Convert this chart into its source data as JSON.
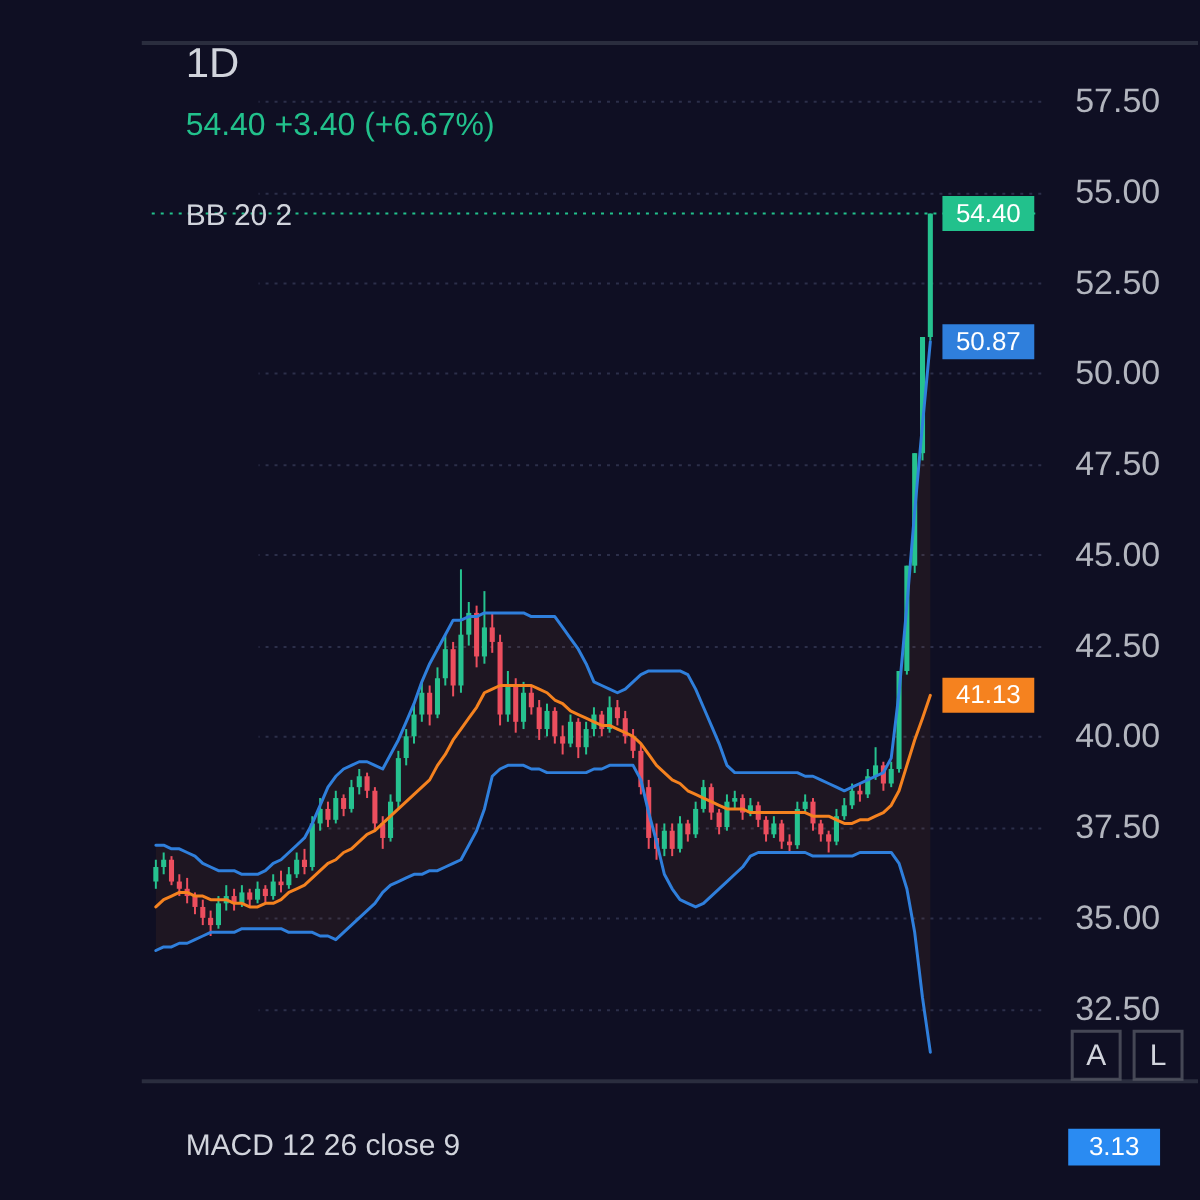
{
  "chart_data": {
    "type": "candlestick",
    "title": "1D",
    "subtitle": "54.40 +3.40 (+6.67%)",
    "categories": [
      null,
      null,
      null,
      null,
      null,
      null,
      null,
      null,
      null,
      null,
      null,
      null,
      null,
      null,
      null,
      null,
      null,
      null,
      null,
      null,
      null,
      null,
      null,
      null,
      null,
      null,
      null,
      null,
      null,
      null,
      null,
      null,
      null,
      null,
      null,
      null,
      null,
      null,
      null,
      null,
      null,
      null,
      null,
      null,
      null,
      null,
      null,
      null,
      null,
      null,
      null,
      null,
      null,
      null,
      null,
      null,
      null,
      null,
      null,
      null,
      null,
      null,
      null,
      null,
      null,
      null,
      null,
      null,
      null,
      null,
      null,
      null,
      null,
      null,
      null,
      null,
      null,
      null,
      null,
      null,
      null,
      null,
      null,
      null,
      null,
      null,
      null,
      null,
      null,
      null,
      null,
      null,
      null,
      null,
      null,
      null,
      null,
      null,
      null,
      null
    ],
    "ohlc": [
      [
        36.0,
        36.6,
        35.8,
        36.4
      ],
      [
        36.4,
        36.8,
        36.2,
        36.6
      ],
      [
        36.6,
        36.7,
        35.9,
        36.0
      ],
      [
        36.0,
        36.2,
        35.6,
        35.8
      ],
      [
        35.8,
        36.1,
        35.4,
        35.6
      ],
      [
        35.6,
        35.7,
        35.1,
        35.3
      ],
      [
        35.3,
        35.5,
        34.8,
        35.0
      ],
      [
        35.0,
        35.2,
        34.5,
        34.8
      ],
      [
        34.8,
        35.6,
        34.7,
        35.4
      ],
      [
        35.4,
        35.9,
        35.2,
        35.6
      ],
      [
        35.6,
        35.8,
        35.2,
        35.4
      ],
      [
        35.4,
        35.9,
        35.3,
        35.7
      ],
      [
        35.7,
        35.8,
        35.3,
        35.5
      ],
      [
        35.5,
        36.0,
        35.4,
        35.8
      ],
      [
        35.8,
        35.9,
        35.4,
        35.6
      ],
      [
        35.6,
        36.2,
        35.5,
        36.0
      ],
      [
        36.0,
        36.3,
        35.7,
        35.9
      ],
      [
        35.9,
        36.4,
        35.8,
        36.2
      ],
      [
        36.2,
        36.8,
        36.1,
        36.6
      ],
      [
        36.6,
        36.9,
        36.2,
        36.4
      ],
      [
        36.4,
        37.8,
        36.3,
        37.6
      ],
      [
        37.6,
        38.3,
        37.4,
        38.0
      ],
      [
        38.0,
        38.2,
        37.5,
        37.7
      ],
      [
        37.7,
        38.5,
        37.6,
        38.3
      ],
      [
        38.3,
        38.4,
        37.8,
        38.0
      ],
      [
        38.0,
        38.8,
        37.9,
        38.6
      ],
      [
        38.6,
        39.1,
        38.4,
        38.9
      ],
      [
        38.9,
        39.0,
        38.3,
        38.5
      ],
      [
        38.5,
        38.6,
        37.4,
        37.6
      ],
      [
        37.6,
        37.8,
        36.9,
        37.2
      ],
      [
        37.2,
        38.4,
        37.1,
        38.2
      ],
      [
        38.2,
        39.6,
        38.0,
        39.4
      ],
      [
        39.4,
        40.2,
        39.2,
        40.0
      ],
      [
        40.0,
        40.9,
        39.8,
        40.6
      ],
      [
        40.6,
        41.5,
        40.4,
        41.2
      ],
      [
        41.2,
        41.4,
        40.3,
        40.6
      ],
      [
        40.6,
        41.9,
        40.5,
        41.6
      ],
      [
        41.6,
        42.8,
        41.4,
        42.4
      ],
      [
        42.4,
        42.6,
        41.1,
        41.4
      ],
      [
        41.4,
        44.6,
        41.2,
        42.8
      ],
      [
        42.8,
        43.7,
        42.5,
        43.4
      ],
      [
        43.4,
        43.6,
        41.9,
        42.2
      ],
      [
        42.2,
        44.0,
        42.0,
        43.0
      ],
      [
        43.0,
        43.4,
        42.3,
        42.6
      ],
      [
        42.6,
        42.8,
        40.3,
        40.6
      ],
      [
        40.6,
        41.8,
        40.4,
        41.4
      ],
      [
        41.4,
        41.6,
        40.1,
        40.4
      ],
      [
        40.4,
        41.5,
        40.2,
        41.2
      ],
      [
        41.2,
        41.4,
        40.6,
        40.8
      ],
      [
        40.8,
        41.0,
        39.9,
        40.2
      ],
      [
        40.2,
        40.9,
        40.0,
        40.7
      ],
      [
        40.7,
        40.8,
        39.8,
        40.0
      ],
      [
        40.0,
        40.3,
        39.5,
        39.8
      ],
      [
        39.8,
        40.6,
        39.7,
        40.4
      ],
      [
        40.4,
        40.5,
        39.4,
        39.7
      ],
      [
        39.7,
        40.4,
        39.5,
        40.2
      ],
      [
        40.2,
        40.8,
        40.0,
        40.6
      ],
      [
        40.6,
        40.7,
        40.0,
        40.2
      ],
      [
        40.2,
        41.1,
        40.1,
        40.8
      ],
      [
        40.8,
        41.0,
        40.3,
        40.5
      ],
      [
        40.5,
        40.7,
        39.8,
        40.0
      ],
      [
        40.0,
        40.2,
        39.4,
        39.6
      ],
      [
        39.6,
        39.8,
        38.4,
        38.6
      ],
      [
        38.6,
        38.8,
        36.9,
        37.2
      ],
      [
        37.2,
        37.6,
        36.6,
        36.9
      ],
      [
        36.9,
        37.6,
        36.7,
        37.4
      ],
      [
        37.4,
        37.6,
        36.7,
        36.9
      ],
      [
        36.9,
        37.8,
        36.8,
        37.6
      ],
      [
        37.6,
        37.7,
        37.1,
        37.3
      ],
      [
        37.3,
        38.2,
        37.2,
        38.0
      ],
      [
        38.0,
        38.8,
        37.9,
        38.6
      ],
      [
        38.6,
        38.7,
        37.7,
        37.9
      ],
      [
        37.9,
        38.0,
        37.3,
        37.5
      ],
      [
        37.5,
        38.4,
        37.4,
        38.2
      ],
      [
        38.2,
        38.5,
        38.0,
        38.3
      ],
      [
        38.3,
        38.4,
        37.7,
        37.9
      ],
      [
        37.9,
        38.3,
        37.8,
        38.1
      ],
      [
        38.1,
        38.2,
        37.5,
        37.7
      ],
      [
        37.7,
        37.8,
        37.1,
        37.3
      ],
      [
        37.3,
        37.8,
        37.2,
        37.6
      ],
      [
        37.6,
        37.7,
        36.9,
        37.1
      ],
      [
        37.1,
        37.3,
        36.8,
        37.0
      ],
      [
        37.0,
        38.2,
        36.9,
        38.0
      ],
      [
        38.0,
        38.4,
        37.9,
        38.2
      ],
      [
        38.2,
        38.3,
        37.4,
        37.6
      ],
      [
        37.6,
        37.7,
        37.1,
        37.3
      ],
      [
        37.3,
        37.4,
        36.8,
        37.1
      ],
      [
        37.1,
        38.0,
        37.0,
        37.8
      ],
      [
        37.8,
        38.3,
        37.7,
        38.1
      ],
      [
        38.1,
        38.7,
        38.0,
        38.5
      ],
      [
        38.5,
        38.7,
        38.2,
        38.4
      ],
      [
        38.4,
        39.1,
        38.3,
        38.9
      ],
      [
        38.9,
        39.7,
        38.8,
        39.2
      ],
      [
        39.2,
        39.3,
        38.5,
        38.7
      ],
      [
        38.7,
        39.3,
        38.6,
        39.1
      ],
      [
        39.1,
        41.8,
        39.0,
        41.8
      ],
      [
        41.8,
        44.7,
        41.7,
        44.7
      ],
      [
        44.7,
        47.8,
        44.5,
        47.8
      ],
      [
        47.8,
        51.0,
        47.6,
        51.0
      ],
      [
        51.0,
        54.4,
        50.9,
        54.4
      ]
    ],
    "colors": [
      "#26c28f",
      "#26c28f",
      "#ec4e5e",
      "#ec4e5e",
      "#ec4e5e",
      "#ec4e5e",
      "#ec4e5e",
      "#ec4e5e",
      "#26c28f",
      "#26c28f",
      "#ec4e5e",
      "#26c28f",
      "#ec4e5e",
      "#26c28f",
      "#ec4e5e",
      "#26c28f",
      "#ec4e5e",
      "#26c28f",
      "#26c28f",
      "#ec4e5e",
      "#26c28f",
      "#26c28f",
      "#ec4e5e",
      "#26c28f",
      "#ec4e5e",
      "#26c28f",
      "#26c28f",
      "#ec4e5e",
      "#ec4e5e",
      "#ec4e5e",
      "#26c28f",
      "#26c28f",
      "#26c28f",
      "#26c28f",
      "#26c28f",
      "#ec4e5e",
      "#26c28f",
      "#26c28f",
      "#ec4e5e",
      "#26c28f",
      "#26c28f",
      "#ec4e5e",
      "#26c28f",
      "#ec4e5e",
      "#ec4e5e",
      "#26c28f",
      "#ec4e5e",
      "#26c28f",
      "#ec4e5e",
      "#ec4e5e",
      "#26c28f",
      "#ec4e5e",
      "#ec4e5e",
      "#26c28f",
      "#ec4e5e",
      "#26c28f",
      "#26c28f",
      "#ec4e5e",
      "#26c28f",
      "#ec4e5e",
      "#ec4e5e",
      "#ec4e5e",
      "#ec4e5e",
      "#ec4e5e",
      "#ec4e5e",
      "#26c28f",
      "#ec4e5e",
      "#26c28f",
      "#ec4e5e",
      "#26c28f",
      "#26c28f",
      "#ec4e5e",
      "#ec4e5e",
      "#26c28f",
      "#26c28f",
      "#ec4e5e",
      "#26c28f",
      "#ec4e5e",
      "#ec4e5e",
      "#26c28f",
      "#ec4e5e",
      "#ec4e5e",
      "#26c28f",
      "#26c28f",
      "#ec4e5e",
      "#ec4e5e",
      "#ec4e5e",
      "#26c28f",
      "#26c28f",
      "#26c28f",
      "#ec4e5e",
      "#26c28f",
      "#26c28f",
      "#ec4e5e",
      "#26c28f",
      "#26c28f",
      "#26c28f",
      "#26c28f",
      "#26c28f",
      "#26c28f"
    ],
    "series": [
      {
        "type": "line",
        "color": "#f5821f",
        "line_style": "solid",
        "values": [
          35.3,
          35.5,
          35.6,
          35.7,
          35.7,
          35.6,
          35.6,
          35.5,
          35.5,
          35.5,
          35.4,
          35.4,
          35.3,
          35.3,
          35.4,
          35.4,
          35.5,
          35.7,
          35.8,
          35.9,
          36.1,
          36.3,
          36.5,
          36.6,
          36.8,
          36.9,
          37.1,
          37.3,
          37.4,
          37.6,
          37.8,
          38.0,
          38.2,
          38.4,
          38.6,
          38.8,
          39.2,
          39.5,
          39.9,
          40.2,
          40.5,
          40.8,
          41.2,
          41.3,
          41.4,
          41.4,
          41.4,
          41.4,
          41.4,
          41.3,
          41.2,
          41.0,
          40.9,
          40.7,
          40.6,
          40.5,
          40.4,
          40.3,
          40.3,
          40.2,
          40.1,
          40.0,
          39.8,
          39.5,
          39.2,
          39.0,
          38.8,
          38.7,
          38.5,
          38.4,
          38.3,
          38.2,
          38.1,
          38.0,
          38.0,
          38.0,
          37.9,
          37.9,
          37.9,
          37.9,
          37.9,
          37.9,
          37.9,
          37.9,
          37.8,
          37.8,
          37.8,
          37.7,
          37.6,
          37.6,
          37.7,
          37.7,
          37.8,
          37.9,
          38.1,
          38.5,
          39.2,
          39.9,
          40.5,
          41.13
        ],
        "lower": [
          34.1,
          34.2,
          34.2,
          34.3,
          34.3,
          34.4,
          34.5,
          34.6,
          34.6,
          34.6,
          34.6,
          34.7,
          34.7,
          34.7,
          34.7,
          34.7,
          34.7,
          34.6,
          34.6,
          34.6,
          34.6,
          34.5,
          34.5,
          34.4,
          34.6,
          34.8,
          35.0,
          35.2,
          35.4,
          35.7,
          35.9,
          36.0,
          36.1,
          36.2,
          36.2,
          36.3,
          36.3,
          36.4,
          36.5,
          36.6,
          37.0,
          37.4,
          38.0,
          38.9,
          39.1,
          39.2,
          39.2,
          39.2,
          39.1,
          39.1,
          39.0,
          39.0,
          39.0,
          39.0,
          39.0,
          39.0,
          39.1,
          39.1,
          39.2,
          39.2,
          39.2,
          39.2,
          38.8,
          37.9,
          37.1,
          36.2,
          35.8,
          35.5,
          35.4,
          35.3,
          35.4,
          35.6,
          35.8,
          36.0,
          36.2,
          36.4,
          36.7,
          36.8,
          36.8,
          36.8,
          36.8,
          36.8,
          36.8,
          36.8,
          36.7,
          36.7,
          36.7,
          36.7,
          36.7,
          36.7,
          36.8,
          36.8,
          36.8,
          36.8,
          36.8,
          36.5,
          35.8,
          34.6,
          32.8,
          31.3
        ],
        "upper": [
          37.0,
          37.0,
          36.9,
          36.9,
          36.8,
          36.7,
          36.5,
          36.4,
          36.3,
          36.3,
          36.3,
          36.2,
          36.2,
          36.2,
          36.3,
          36.5,
          36.6,
          36.8,
          37.0,
          37.2,
          37.6,
          38.1,
          38.6,
          38.9,
          39.1,
          39.2,
          39.3,
          39.3,
          39.2,
          39.1,
          39.5,
          39.9,
          40.4,
          40.9,
          41.5,
          42.0,
          42.4,
          42.8,
          43.2,
          43.2,
          43.3,
          43.3,
          43.4,
          43.4,
          43.4,
          43.4,
          43.4,
          43.4,
          43.3,
          43.3,
          43.3,
          43.3,
          43.0,
          42.7,
          42.4,
          42.0,
          41.5,
          41.4,
          41.3,
          41.2,
          41.3,
          41.5,
          41.7,
          41.8,
          41.8,
          41.8,
          41.8,
          41.8,
          41.7,
          41.3,
          40.8,
          40.3,
          39.8,
          39.2,
          39.0,
          39.0,
          39.0,
          39.0,
          39.0,
          39.0,
          39.0,
          39.0,
          39.0,
          38.9,
          38.9,
          38.8,
          38.7,
          38.6,
          38.5,
          38.6,
          38.7,
          38.8,
          38.9,
          39.0,
          39.4,
          41.2,
          43.6,
          46.2,
          48.6,
          50.87
        ],
        "value_labels": [
          null,
          null,
          null,
          null,
          null,
          null,
          null,
          null,
          null,
          null,
          null,
          null,
          null,
          null,
          null,
          null,
          null,
          null,
          null,
          null,
          null,
          null,
          null,
          null,
          null,
          null,
          null,
          null,
          null,
          null,
          null,
          null,
          null,
          null,
          null,
          null,
          null,
          null,
          null,
          null,
          null,
          null,
          null,
          null,
          null,
          null,
          null,
          null,
          null,
          null,
          null,
          null,
          null,
          null,
          null,
          null,
          null,
          null,
          null,
          null,
          null,
          null,
          null,
          null,
          null,
          null,
          null,
          null,
          null,
          null,
          null,
          null,
          null,
          null,
          null,
          null,
          null,
          null,
          null,
          null,
          null,
          null,
          null,
          null,
          null,
          null,
          null,
          null,
          null,
          null,
          null,
          null,
          null,
          null,
          null,
          null,
          null,
          null,
          null,
          "41.13"
        ]
      },
      {
        "type": "line",
        "color": "#2f7fdc",
        "line_style": "solid",
        "values": [
          37.0,
          37.0,
          36.9,
          36.9,
          36.8,
          36.7,
          36.5,
          36.4,
          36.3,
          36.3,
          36.3,
          36.2,
          36.2,
          36.2,
          36.3,
          36.5,
          36.6,
          36.8,
          37.0,
          37.2,
          37.6,
          38.1,
          38.6,
          38.9,
          39.1,
          39.2,
          39.3,
          39.3,
          39.2,
          39.1,
          39.5,
          39.9,
          40.4,
          40.9,
          41.5,
          42.0,
          42.4,
          42.8,
          43.2,
          43.2,
          43.3,
          43.3,
          43.4,
          43.4,
          43.4,
          43.4,
          43.4,
          43.4,
          43.3,
          43.3,
          43.3,
          43.3,
          43.0,
          42.7,
          42.4,
          42.0,
          41.5,
          41.4,
          41.3,
          41.2,
          41.3,
          41.5,
          41.7,
          41.8,
          41.8,
          41.8,
          41.8,
          41.8,
          41.7,
          41.3,
          40.8,
          40.3,
          39.8,
          39.2,
          39.0,
          39.0,
          39.0,
          39.0,
          39.0,
          39.0,
          39.0,
          39.0,
          39.0,
          38.9,
          38.9,
          38.8,
          38.7,
          38.6,
          38.5,
          38.6,
          38.7,
          38.8,
          38.9,
          39.0,
          39.4,
          41.2,
          43.6,
          46.2,
          48.6,
          50.87
        ],
        "value_labels": [
          null,
          null,
          null,
          null,
          null,
          null,
          null,
          null,
          null,
          null,
          null,
          null,
          null,
          null,
          null,
          null,
          null,
          null,
          null,
          null,
          null,
          null,
          null,
          null,
          null,
          null,
          null,
          null,
          null,
          null,
          null,
          null,
          null,
          null,
          null,
          null,
          null,
          null,
          null,
          null,
          null,
          null,
          null,
          null,
          null,
          null,
          null,
          null,
          null,
          null,
          null,
          null,
          null,
          null,
          null,
          null,
          null,
          null,
          null,
          null,
          null,
          null,
          null,
          null,
          null,
          null,
          null,
          null,
          null,
          null,
          null,
          null,
          null,
          null,
          null,
          null,
          null,
          null,
          null,
          null,
          null,
          null,
          null,
          null,
          null,
          null,
          null,
          null,
          null,
          null,
          null,
          null,
          null,
          null,
          null,
          null,
          null,
          null,
          null,
          "50.87"
        ]
      },
      {
        "type": "line",
        "color": "#2f7fdc",
        "line_style": "solid",
        "values": [
          34.1,
          34.2,
          34.2,
          34.3,
          34.3,
          34.4,
          34.5,
          34.6,
          34.6,
          34.6,
          34.6,
          34.7,
          34.7,
          34.7,
          34.7,
          34.7,
          34.7,
          34.6,
          34.6,
          34.6,
          34.6,
          34.5,
          34.5,
          34.4,
          34.6,
          34.8,
          35.0,
          35.2,
          35.4,
          35.7,
          35.9,
          36.0,
          36.1,
          36.2,
          36.2,
          36.3,
          36.3,
          36.4,
          36.5,
          36.6,
          37.0,
          37.4,
          38.0,
          38.9,
          39.1,
          39.2,
          39.2,
          39.2,
          39.1,
          39.1,
          39.0,
          39.0,
          39.0,
          39.0,
          39.0,
          39.0,
          39.1,
          39.1,
          39.2,
          39.2,
          39.2,
          39.2,
          38.8,
          37.9,
          37.1,
          36.2,
          35.8,
          35.5,
          35.4,
          35.3,
          35.4,
          35.6,
          35.8,
          36.0,
          36.2,
          36.4,
          36.7,
          36.8,
          36.8,
          36.8,
          36.8,
          36.8,
          36.8,
          36.8,
          36.7,
          36.7,
          36.7,
          36.7,
          36.7,
          36.7,
          36.8,
          36.8,
          36.8,
          36.8,
          36.8,
          36.5,
          35.8,
          34.6,
          32.8,
          31.3
        ]
      }
    ],
    "ylim": [
      30.5,
      59.1
    ],
    "yticks": [
      {
        "value": 32.5,
        "label": "32.50"
      },
      {
        "value": 35,
        "label": "35.00"
      },
      {
        "value": 37.5,
        "label": "37.50"
      },
      {
        "value": 40,
        "label": "40.00"
      },
      {
        "value": 42.5,
        "label": "42.50"
      },
      {
        "value": 45,
        "label": "45.00"
      },
      {
        "value": 47.5,
        "label": "47.50"
      },
      {
        "value": 50,
        "label": "50.00"
      },
      {
        "value": 52.5,
        "label": "52.50"
      },
      {
        "value": 55,
        "label": "55.00"
      },
      {
        "value": 57.5,
        "label": "57.50"
      }
    ],
    "grid": "y",
    "tick_labels": "y",
    "ref_lines": [
      {
        "axis": "y",
        "value": 54.4,
        "label": "54.40",
        "color": "#22c18c",
        "line_style": "dotted"
      }
    ],
    "annotations": [
      "BB 20 2",
      "A",
      "L",
      "MACD 12 26 close 9",
      "3.13"
    ]
  }
}
